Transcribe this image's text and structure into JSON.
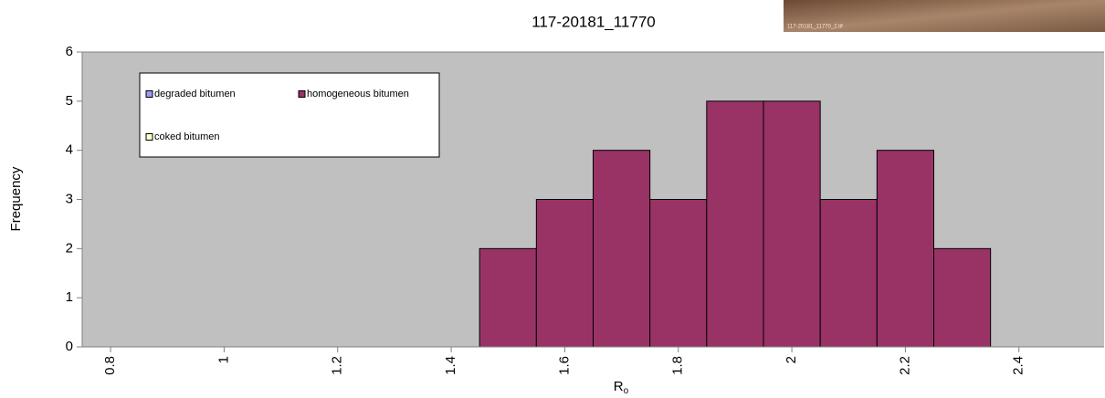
{
  "chart_data": {
    "type": "histogram",
    "title": "117-20181_11770",
    "image_caption": "117-20181_11770_2.tif",
    "xlabel": "R",
    "xlabel_subscript": "o",
    "ylabel": "Frequency",
    "bins": [
      1.45,
      1.55,
      1.65,
      1.75,
      1.85,
      1.95,
      2.05,
      2.15,
      2.25,
      2.35
    ],
    "series": [
      {
        "name": "degraded bitumen",
        "color": "#9999ff"
      },
      {
        "name": "homogeneous bitumen",
        "color": "#993366",
        "values": [
          2,
          3,
          4,
          3,
          5,
          5,
          3,
          4,
          2
        ]
      },
      {
        "name": "coked bitumen",
        "color": "#ffffcc"
      }
    ],
    "xlim": [
      0.75,
      2.55
    ],
    "xticks": [
      0.8,
      1,
      1.2,
      1.4,
      1.6,
      1.8,
      2,
      2.2,
      2.4
    ],
    "ylim": [
      0,
      6
    ],
    "yticks": [
      0,
      1,
      2,
      3,
      4,
      5,
      6
    ],
    "background": "#c0c0c0"
  }
}
